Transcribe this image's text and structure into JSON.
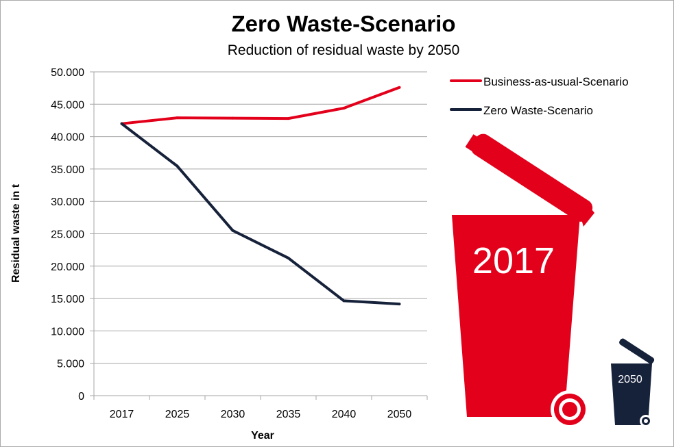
{
  "chart_data": {
    "type": "line",
    "title": "Zero Waste-Scenario",
    "subtitle": "Reduction of residual waste by 2050",
    "xlabel": "Year",
    "ylabel": "Residual waste in t",
    "categories": [
      "2017",
      "2025",
      "2030",
      "2035",
      "2040",
      "2050"
    ],
    "ylim": [
      0,
      50000
    ],
    "yticks": [
      0,
      5000,
      10000,
      15000,
      20000,
      25000,
      30000,
      35000,
      40000,
      45000,
      50000
    ],
    "ytick_labels": [
      "0",
      "5.000",
      "10.000",
      "15.000",
      "20.000",
      "25.000",
      "30.000",
      "35.000",
      "40.000",
      "45.000",
      "50.000"
    ],
    "grid": true,
    "legend_position": "top-right",
    "series": [
      {
        "name": "Business-as-usual-Scenario",
        "color": "#e3001b",
        "values": [
          42000,
          42900,
          42850,
          42800,
          44400,
          47600
        ]
      },
      {
        "name": "Zero Waste-Scenario",
        "color": "#16213a",
        "values": [
          42000,
          35450,
          25500,
          21250,
          14650,
          14150
        ]
      }
    ]
  },
  "illustration": {
    "big_bin_label": "2017",
    "small_bin_label": "2050",
    "big_bin_color": "#e3001b",
    "small_bin_color": "#16213a"
  }
}
